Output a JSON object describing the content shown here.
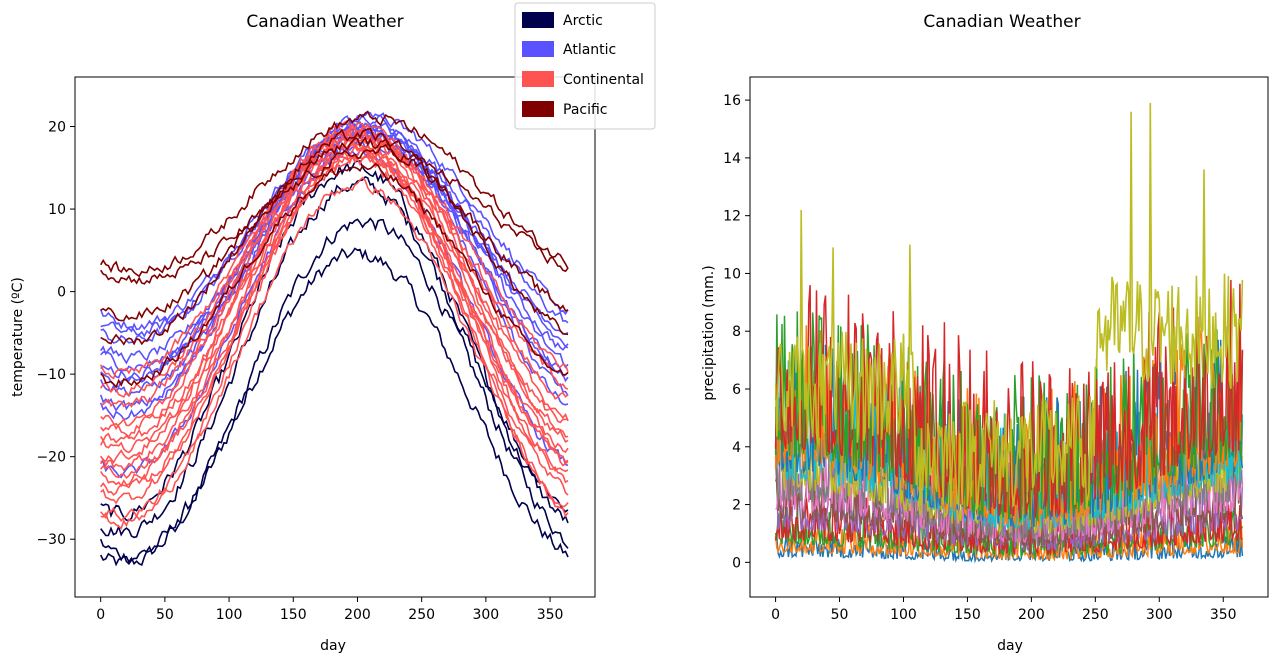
{
  "chart_data": [
    {
      "type": "line",
      "title": "Canadian Weather",
      "xlabel": "day",
      "ylabel": "temperature (ºC)",
      "xlim": [
        -20,
        385
      ],
      "ylim": [
        -37,
        26
      ],
      "xticks": [
        0,
        50,
        100,
        150,
        200,
        250,
        300,
        350
      ],
      "yticks": [
        -30,
        -20,
        -10,
        0,
        10,
        20
      ],
      "legend": {
        "position": "upper right",
        "entries": [
          {
            "name": "Arctic",
            "color": "#00004c"
          },
          {
            "name": "Atlantic",
            "color": "#5a52ff"
          },
          {
            "name": "Continental",
            "color": "#ff5252"
          },
          {
            "name": "Pacific",
            "color": "#800000"
          }
        ]
      },
      "series_profiles": [
        {
          "group": "Arctic",
          "min": -33,
          "max": 4.5,
          "peak_day": 200
        },
        {
          "group": "Arctic",
          "min": -32,
          "max": 8.5,
          "peak_day": 205
        },
        {
          "group": "Arctic",
          "min": -29,
          "max": 13,
          "peak_day": 200
        },
        {
          "group": "Arctic",
          "min": -27,
          "max": 15,
          "peak_day": 197
        },
        {
          "group": "Atlantic",
          "min": -4,
          "max": 21,
          "peak_day": 210
        },
        {
          "group": "Atlantic",
          "min": -5,
          "max": 20,
          "peak_day": 208
        },
        {
          "group": "Atlantic",
          "min": -6,
          "max": 19.5,
          "peak_day": 205
        },
        {
          "group": "Atlantic",
          "min": -8,
          "max": 19,
          "peak_day": 208
        },
        {
          "group": "Atlantic",
          "min": -9,
          "max": 18,
          "peak_day": 210
        },
        {
          "group": "Atlantic",
          "min": -10,
          "max": 20,
          "peak_day": 205
        },
        {
          "group": "Atlantic",
          "min": -11,
          "max": 19,
          "peak_day": 203
        },
        {
          "group": "Atlantic",
          "min": -12,
          "max": 18.5,
          "peak_day": 207
        },
        {
          "group": "Atlantic",
          "min": -14,
          "max": 21,
          "peak_day": 205
        },
        {
          "group": "Atlantic",
          "min": -15,
          "max": 20,
          "peak_day": 202
        },
        {
          "group": "Atlantic",
          "min": -22,
          "max": 17,
          "peak_day": 200
        },
        {
          "group": "Continental",
          "min": -10,
          "max": 19,
          "peak_day": 200
        },
        {
          "group": "Continental",
          "min": -12,
          "max": 19,
          "peak_day": 200
        },
        {
          "group": "Continental",
          "min": -14,
          "max": 20,
          "peak_day": 198
        },
        {
          "group": "Continental",
          "min": -16,
          "max": 20,
          "peak_day": 198
        },
        {
          "group": "Continental",
          "min": -17,
          "max": 19,
          "peak_day": 197
        },
        {
          "group": "Continental",
          "min": -18,
          "max": 18,
          "peak_day": 198
        },
        {
          "group": "Continental",
          "min": -19,
          "max": 19,
          "peak_day": 200
        },
        {
          "group": "Continental",
          "min": -20,
          "max": 18,
          "peak_day": 196
        },
        {
          "group": "Continental",
          "min": -21,
          "max": 17,
          "peak_day": 198
        },
        {
          "group": "Continental",
          "min": -22,
          "max": 16,
          "peak_day": 200
        },
        {
          "group": "Continental",
          "min": -23,
          "max": 18,
          "peak_day": 197
        },
        {
          "group": "Continental",
          "min": -24,
          "max": 17,
          "peak_day": 199
        },
        {
          "group": "Continental",
          "min": -25,
          "max": 16,
          "peak_day": 198
        },
        {
          "group": "Continental",
          "min": -27,
          "max": 13,
          "peak_day": 200
        },
        {
          "group": "Continental",
          "min": -28,
          "max": 17,
          "peak_day": 200
        },
        {
          "group": "Pacific",
          "min": 2.5,
          "max": 21,
          "peak_day": 210
        },
        {
          "group": "Pacific",
          "min": 1.5,
          "max": 17,
          "peak_day": 215
        },
        {
          "group": "Pacific",
          "min": -3,
          "max": 18,
          "peak_day": 205
        },
        {
          "group": "Pacific",
          "min": -6,
          "max": 19,
          "peak_day": 203
        },
        {
          "group": "Pacific",
          "min": -11,
          "max": 15,
          "peak_day": 200
        }
      ]
    },
    {
      "type": "line",
      "title": "Canadian Weather",
      "xlabel": "day",
      "ylabel": "precipitation (mm.)",
      "xlim": [
        -20,
        385
      ],
      "ylim": [
        -1.2,
        16.8
      ],
      "xticks": [
        0,
        50,
        100,
        150,
        200,
        250,
        300,
        350
      ],
      "yticks": [
        0,
        2,
        4,
        6,
        8,
        10,
        12,
        14,
        16
      ],
      "colors": [
        "#1f77b4",
        "#ff7f0e",
        "#2ca02c",
        "#d62728",
        "#9467bd",
        "#8c564b",
        "#e377c2",
        "#7f7f7f",
        "#bcbd22",
        "#17becf"
      ],
      "series_profiles": [
        {
          "base": 0.3,
          "amp": 0.6
        },
        {
          "base": 0.5,
          "amp": 0.8
        },
        {
          "base": 0.8,
          "amp": 1.0
        },
        {
          "base": 1.0,
          "amp": 1.2
        },
        {
          "base": 1.4,
          "amp": 1.4
        },
        {
          "base": 1.8,
          "amp": 1.6
        },
        {
          "base": 2.2,
          "amp": 2.0
        },
        {
          "base": 2.6,
          "amp": 2.4
        },
        {
          "base": 3.0,
          "amp": 2.6
        },
        {
          "base": 3.4,
          "amp": 3.0
        },
        {
          "base": 3.8,
          "amp": 3.4
        },
        {
          "base": 4.0,
          "amp": 3.6
        },
        {
          "base": 4.4,
          "amp": 3.8
        },
        {
          "base": 4.8,
          "amp": 4.4
        }
      ],
      "highlight_series": {
        "color": "#bcbd22",
        "winter_level": 6.0,
        "summer_level": 3.8,
        "autumn_level": 8.0,
        "peak_values": [
          12.2,
          10.9,
          11.0,
          15.6,
          15.9,
          13.6
        ]
      }
    }
  ]
}
